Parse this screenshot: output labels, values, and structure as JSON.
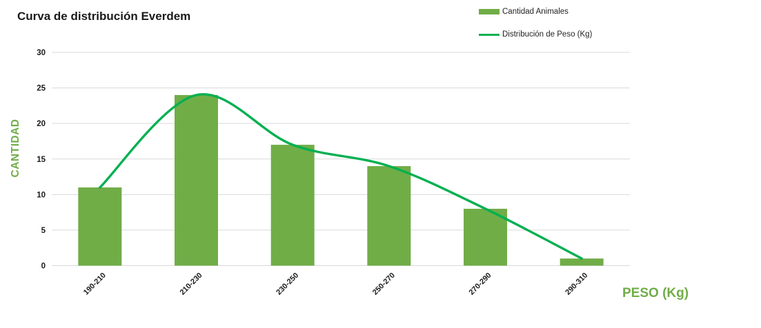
{
  "title": "Curva de distribución Everdem",
  "legend": {
    "items": [
      {
        "label": "Cantidad Animales",
        "swatch": "bar"
      },
      {
        "label": "Distribución de Peso (Kg)",
        "swatch": "line"
      }
    ]
  },
  "chart_data": {
    "type": "combo",
    "title": "Curva de distribución Everdem",
    "categories": [
      "190-210",
      "210-230",
      "230-250",
      "250-270",
      "270-290",
      "290-310"
    ],
    "series": [
      {
        "name": "Cantidad Animales",
        "type": "bar",
        "values": [
          11,
          24,
          17,
          14,
          8,
          1
        ],
        "color": "#70AD47"
      },
      {
        "name": "Distribución de Peso (Kg)",
        "type": "line",
        "values": [
          11,
          24,
          17,
          14,
          8,
          1
        ],
        "color": "#00B050"
      }
    ],
    "xlabel": "PESO (Kg)",
    "ylabel": "CANTIDAD",
    "ylim": [
      0,
      30
    ],
    "yticks": [
      0,
      5,
      10,
      15,
      20,
      25,
      30
    ],
    "grid": true,
    "legend_position": "top-right"
  },
  "colors": {
    "bar": "#70AD47",
    "line": "#00B050",
    "axis_title": "#70AD47",
    "grid": "#D9D9D9",
    "tick_text": "#1a1a1a"
  }
}
